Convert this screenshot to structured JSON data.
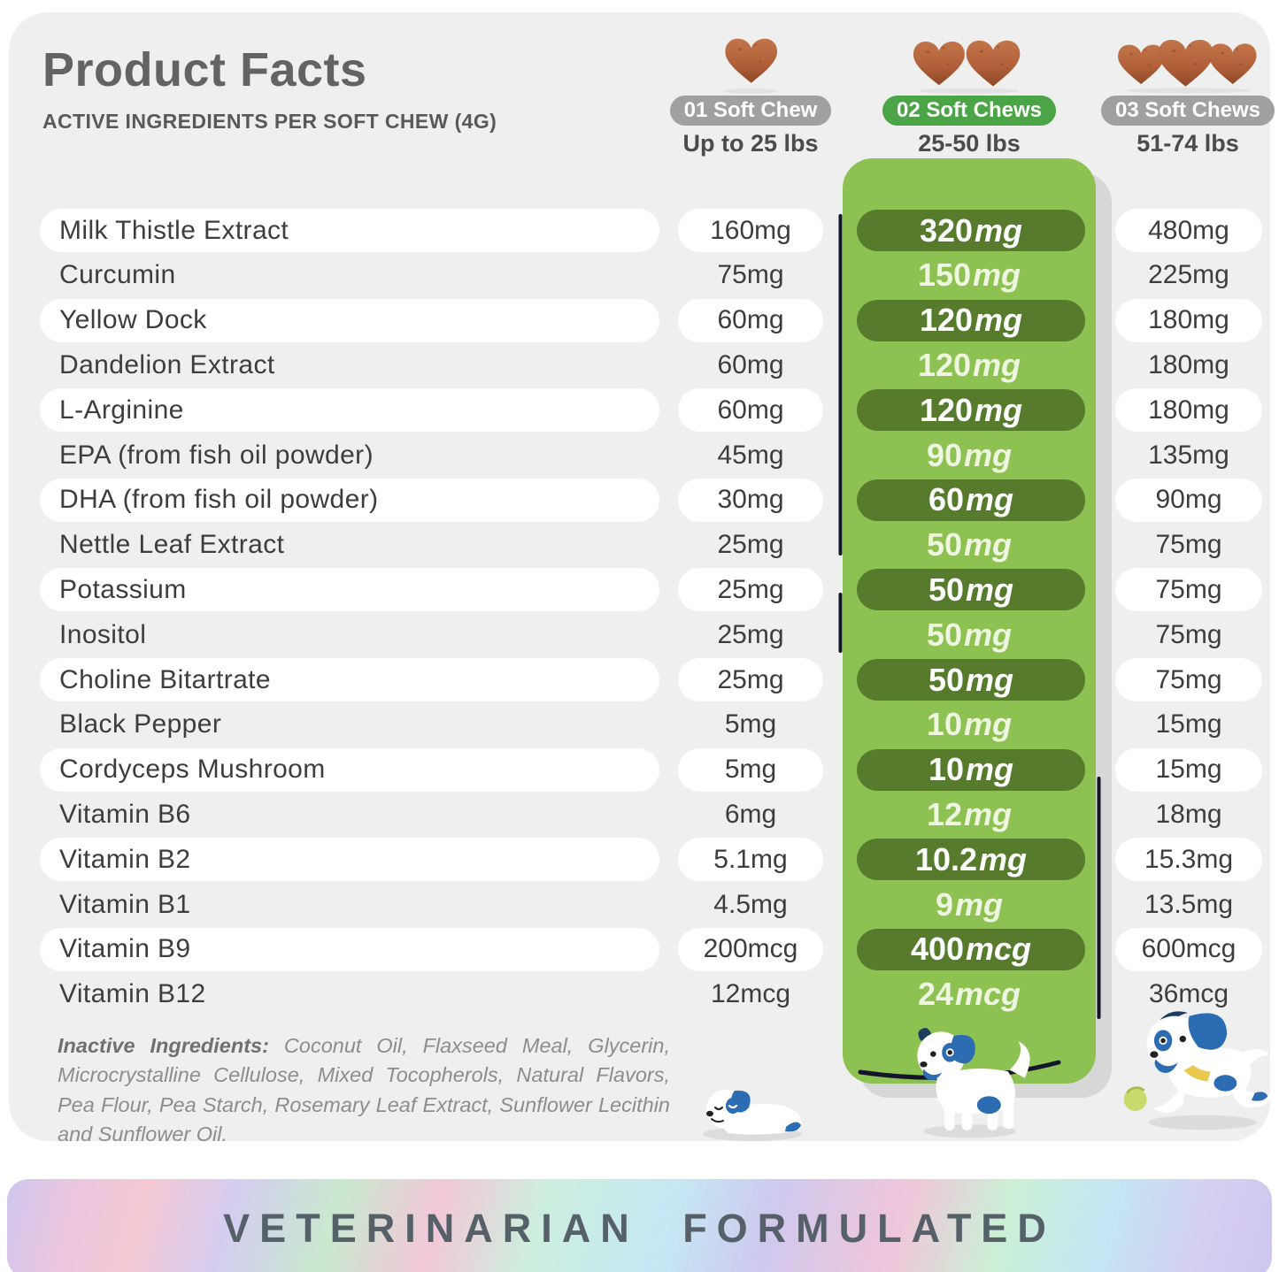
{
  "header": {
    "title": "Product Facts",
    "subtitle": "ACTIVE INGREDIENTS PER SOFT CHEW (4G)"
  },
  "dose_columns": [
    {
      "badge": "01 Soft Chew",
      "weight_range": "Up to 25 lbs",
      "chew_count": 1,
      "badge_color": "#a0a0a0",
      "highlighted": false
    },
    {
      "badge": "02 Soft Chews",
      "weight_range": "25-50 lbs",
      "chew_count": 2,
      "badge_color": "#4ba546",
      "highlighted": true
    },
    {
      "badge": "03 Soft Chews",
      "weight_range": "51-74 lbs",
      "chew_count": 3,
      "badge_color": "#a0a0a0",
      "highlighted": false
    }
  ],
  "ingredients": [
    {
      "name": "Milk Thistle Extract",
      "one_chew": "160mg",
      "two_chews_num": "320",
      "two_chews_unit": "mg",
      "three_chews": "480mg"
    },
    {
      "name": "Curcumin",
      "one_chew": "75mg",
      "two_chews_num": "150",
      "two_chews_unit": "mg",
      "three_chews": "225mg"
    },
    {
      "name": "Yellow Dock",
      "one_chew": "60mg",
      "two_chews_num": "120",
      "two_chews_unit": "mg",
      "three_chews": "180mg"
    },
    {
      "name": "Dandelion Extract",
      "one_chew": "60mg",
      "two_chews_num": "120",
      "two_chews_unit": "mg",
      "three_chews": "180mg"
    },
    {
      "name": "L-Arginine",
      "one_chew": "60mg",
      "two_chews_num": "120",
      "two_chews_unit": "mg",
      "three_chews": "180mg"
    },
    {
      "name": "EPA (from fish oil powder)",
      "one_chew": "45mg",
      "two_chews_num": "90",
      "two_chews_unit": "mg",
      "three_chews": "135mg"
    },
    {
      "name": "DHA (from fish oil powder)",
      "one_chew": "30mg",
      "two_chews_num": "60",
      "two_chews_unit": "mg",
      "three_chews": "90mg"
    },
    {
      "name": "Nettle Leaf Extract",
      "one_chew": "25mg",
      "two_chews_num": "50",
      "two_chews_unit": "mg",
      "three_chews": "75mg"
    },
    {
      "name": "Potassium",
      "one_chew": "25mg",
      "two_chews_num": "50",
      "two_chews_unit": "mg",
      "three_chews": "75mg"
    },
    {
      "name": "Inositol",
      "one_chew": "25mg",
      "two_chews_num": "50",
      "two_chews_unit": "mg",
      "three_chews": "75mg"
    },
    {
      "name": "Choline Bitartrate",
      "one_chew": "25mg",
      "two_chews_num": "50",
      "two_chews_unit": "mg",
      "three_chews": "75mg"
    },
    {
      "name": "Black Pepper",
      "one_chew": "5mg",
      "two_chews_num": "10",
      "two_chews_unit": "mg",
      "three_chews": "15mg"
    },
    {
      "name": "Cordyceps Mushroom",
      "one_chew": "5mg",
      "two_chews_num": "10",
      "two_chews_unit": "mg",
      "three_chews": "15mg"
    },
    {
      "name": "Vitamin B6",
      "one_chew": "6mg",
      "two_chews_num": "12",
      "two_chews_unit": "mg",
      "three_chews": "18mg"
    },
    {
      "name": "Vitamin B2",
      "one_chew": "5.1mg",
      "two_chews_num": "10.2",
      "two_chews_unit": "mg",
      "three_chews": "15.3mg"
    },
    {
      "name": "Vitamin B1",
      "one_chew": "4.5mg",
      "two_chews_num": "9",
      "two_chews_unit": "mg",
      "three_chews": "13.5mg"
    },
    {
      "name": "Vitamin B9",
      "one_chew": "200mcg",
      "two_chews_num": "400",
      "two_chews_unit": "mcg",
      "three_chews": "600mcg"
    },
    {
      "name": "Vitamin B12",
      "one_chew": "12mcg",
      "two_chews_num": "24",
      "two_chews_unit": "mcg",
      "three_chews": "36mcg"
    }
  ],
  "inactive_ingredients": {
    "label": "Inactive Ingredients:",
    "text": "Coconut Oil, Flaxseed Meal, Glycerin, Microcrystalline Cellulose, Mixed Tocopherols, Natural Flavors, Pea Flour, Pea Starch, Rosemary Leaf Extract, Sunflower Lecithin and Sunflower Oil."
  },
  "banner": {
    "text": "VETERINARIAN FORMULATED"
  },
  "colors": {
    "card_background": "#efefef",
    "highlight_panel_green": "#8dc152",
    "highlight_pill_green": "#567b2d",
    "badge_green": "#4ba546",
    "badge_gray": "#a0a0a0",
    "chew_brown": "#b2613a",
    "dog_blue": "#2c6cb3"
  },
  "icons": {
    "chew": "heart-chew-icon",
    "dogs": [
      "puppy-lying-icon",
      "puppy-walking-icon",
      "puppy-running-icon"
    ]
  }
}
